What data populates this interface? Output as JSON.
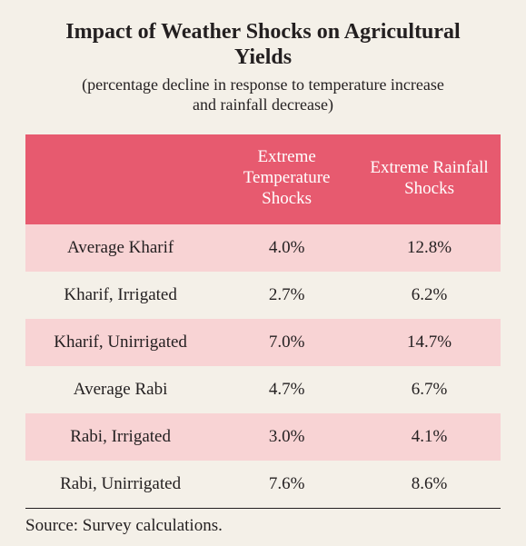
{
  "title": "Impact of Weather Shocks on Agricultural Yields",
  "subtitle": "(percentage decline in response to temperature increase and rainfall decrease)",
  "table": {
    "type": "table",
    "header_background": "#e75a6f",
    "header_text_color": "#ffffff",
    "row_odd_background": "#f8d3d4",
    "row_even_background": "#f4f0e8",
    "font_size": 19,
    "columns": [
      "",
      "Extreme Temperature Shocks",
      "Extreme Rainfall Shocks"
    ],
    "rows": [
      {
        "label": "Average Kharif",
        "temp": "4.0%",
        "rain": "12.8%"
      },
      {
        "label": "Kharif, Irrigated",
        "temp": "2.7%",
        "rain": "6.2%"
      },
      {
        "label": "Kharif, Unirrigated",
        "temp": "7.0%",
        "rain": "14.7%"
      },
      {
        "label": "Average Rabi",
        "temp": "4.7%",
        "rain": "6.7%"
      },
      {
        "label": "Rabi, Irrigated",
        "temp": "3.0%",
        "rain": "4.1%"
      },
      {
        "label": "Rabi, Unirrigated",
        "temp": "7.6%",
        "rain": "8.6%"
      }
    ]
  },
  "source": "Source: Survey calculations.",
  "page_background": "#f4f0e8",
  "title_fontsize": 24,
  "subtitle_fontsize": 18
}
